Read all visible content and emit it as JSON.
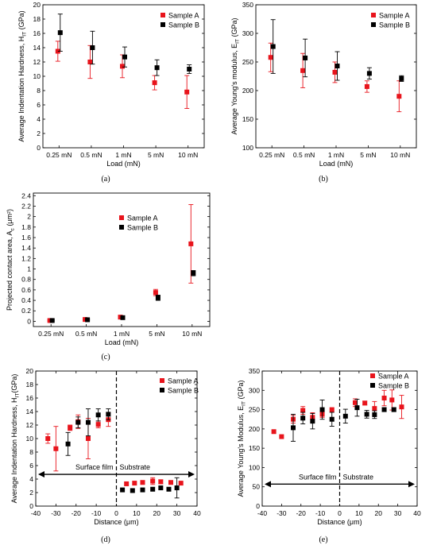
{
  "colors": {
    "sample_a": "#e8141c",
    "sample_b": "#000000"
  },
  "chart_data": [
    {
      "id": "a",
      "type": "scatter",
      "caption": "(a)",
      "xlabel": "Load (mN)",
      "ylabel": "Average Indentation Hardness, H",
      "ylabel_sub": "IT",
      "ylabel_unit": " (GPa)",
      "categories": [
        "0.25 mN",
        "0.5 mN",
        "1 mN",
        "5 mN",
        "10 mN"
      ],
      "ylim": [
        0,
        20
      ],
      "yticks": [
        0,
        2,
        4,
        6,
        8,
        10,
        12,
        14,
        16,
        18,
        20
      ],
      "legend_position": "top-right",
      "series": [
        {
          "name": "Sample A",
          "color": "#e8141c",
          "values": [
            13.5,
            12.0,
            11.4,
            9.1,
            7.8
          ],
          "err": [
            1.4,
            2.3,
            1.6,
            1.0,
            2.3
          ]
        },
        {
          "name": "Sample B",
          "color": "#000000",
          "values": [
            16.1,
            14.0,
            12.7,
            11.2,
            11.0
          ],
          "err": [
            2.6,
            2.3,
            1.4,
            1.1,
            0.6
          ]
        }
      ]
    },
    {
      "id": "b",
      "type": "scatter",
      "caption": "(b)",
      "xlabel": "Load (mN)",
      "ylabel": "Average Young's modulus, E",
      "ylabel_sub": "IT",
      "ylabel_unit": " (GPa)",
      "categories": [
        "0.25 mN",
        "0.5 mN",
        "1 mN",
        "5 mN",
        "10 mN"
      ],
      "ylim": [
        100,
        350
      ],
      "yticks": [
        100,
        150,
        200,
        250,
        300,
        350
      ],
      "legend_position": "top-right",
      "series": [
        {
          "name": "Sample A",
          "color": "#e8141c",
          "values": [
            258,
            235,
            232,
            207,
            190
          ],
          "err": [
            25,
            30,
            18,
            10,
            27
          ]
        },
        {
          "name": "Sample B",
          "color": "#000000",
          "values": [
            277,
            257,
            243,
            230,
            221
          ],
          "err": [
            47,
            33,
            25,
            10,
            5
          ]
        }
      ]
    },
    {
      "id": "c",
      "type": "scatter",
      "caption": "(c)",
      "xlabel": "Load (mN)",
      "ylabel": "Projected  contact area, A",
      "ylabel_sub": "c",
      "ylabel_unit": " (μm²)",
      "categories": [
        "0.25 mN",
        "0.5 mN",
        "1 mN",
        "5 mN",
        "10 mN"
      ],
      "ylim": [
        -0.1,
        2.45
      ],
      "yticks": [
        0.0,
        0.2,
        0.4,
        0.6,
        0.8,
        1.0,
        1.2,
        1.4,
        1.6,
        1.8,
        2.0,
        2.2,
        2.4
      ],
      "legend_position": "top-right",
      "series": [
        {
          "name": "Sample A",
          "color": "#e8141c",
          "values": [
            0.015,
            0.035,
            0.08,
            0.55,
            1.48
          ],
          "err": [
            0.01,
            0.01,
            0.02,
            0.06,
            0.75
          ]
        },
        {
          "name": "Sample B",
          "color": "#000000",
          "values": [
            0.015,
            0.03,
            0.07,
            0.45,
            0.92
          ],
          "err": [
            0.01,
            0.01,
            0.02,
            0.05,
            0.05
          ]
        }
      ]
    },
    {
      "id": "d",
      "type": "scatter",
      "caption": "(d)",
      "xlabel": "Distance (μm)",
      "ylabel": "Average Indentation Hardness, H",
      "ylabel_sub": "IT",
      "ylabel_unit": "(GPa)",
      "xlim": [
        -40,
        40
      ],
      "xticks": [
        -40,
        -30,
        -20,
        -10,
        0,
        10,
        20,
        30,
        40
      ],
      "ylim": [
        0,
        20
      ],
      "yticks": [
        0,
        2,
        4,
        6,
        8,
        10,
        12,
        14,
        16,
        18,
        20
      ],
      "legend_position": "top-right",
      "annotations": {
        "left": "Surface film",
        "right": "Substrate",
        "arrow_y": 4.7,
        "divider_x": 0
      },
      "series": [
        {
          "name": "Sample A",
          "color": "#e8141c",
          "x": [
            -34,
            -30,
            -23,
            -19,
            -14,
            -9,
            -4,
            5,
            9,
            13,
            18,
            22,
            27,
            32
          ],
          "values": [
            10.0,
            8.5,
            11.6,
            12.5,
            10.0,
            12.1,
            12.8,
            3.3,
            3.4,
            3.5,
            3.7,
            3.6,
            3.5,
            3.4
          ],
          "err": [
            0.7,
            3.3,
            0.4,
            1.0,
            3.0,
            0.5,
            1.0,
            0,
            0,
            0.2,
            0.5,
            0.3,
            0.2,
            0
          ]
        },
        {
          "name": "Sample B",
          "color": "#000000",
          "x": [
            -24,
            -19,
            -14,
            -9,
            -4,
            3,
            8,
            13,
            18,
            22,
            26,
            30
          ],
          "values": [
            9.2,
            12.4,
            12.4,
            13.5,
            13.6,
            2.4,
            2.3,
            2.4,
            2.5,
            2.7,
            2.5,
            2.7
          ],
          "err": [
            1.7,
            0.8,
            2.0,
            0.9,
            0.8,
            0,
            0,
            0,
            0,
            0,
            0,
            1.5
          ]
        }
      ]
    },
    {
      "id": "e",
      "type": "scatter",
      "caption": "(e)",
      "xlabel": "Distance (μm)",
      "ylabel": "Average Young's Modulus, E",
      "ylabel_sub": "IT",
      "ylabel_unit": " (GPa)",
      "xlim": [
        -40,
        40
      ],
      "xticks": [
        -40,
        -30,
        -20,
        -10,
        0,
        10,
        20,
        30,
        40
      ],
      "ylim": [
        0,
        350
      ],
      "yticks": [
        0,
        50,
        100,
        150,
        200,
        250,
        300,
        350
      ],
      "legend_position": "top-right",
      "annotations": {
        "left": "Surface film",
        "right": "Substrate",
        "arrow_y": 57,
        "divider_x": 0
      },
      "series": [
        {
          "name": "Sample A",
          "color": "#e8141c",
          "x": [
            -34,
            -30,
            -24,
            -19,
            -14,
            -9,
            -4,
            8,
            13,
            18,
            23,
            27,
            32
          ],
          "values": [
            193,
            180,
            225,
            248,
            230,
            238,
            250,
            268,
            267,
            253,
            280,
            275,
            257
          ],
          "err": [
            0,
            0,
            10,
            10,
            12,
            8,
            0,
            10,
            5,
            18,
            20,
            26,
            30
          ]
        },
        {
          "name": "Sample B",
          "color": "#000000",
          "x": [
            -24,
            -19,
            -14,
            -9,
            -4,
            3,
            9,
            14,
            18,
            23,
            28
          ],
          "values": [
            203,
            228,
            220,
            250,
            225,
            233,
            255,
            238,
            237,
            250,
            250
          ],
          "err": [
            35,
            15,
            20,
            25,
            18,
            18,
            22,
            10,
            10,
            5,
            5
          ]
        }
      ]
    }
  ]
}
